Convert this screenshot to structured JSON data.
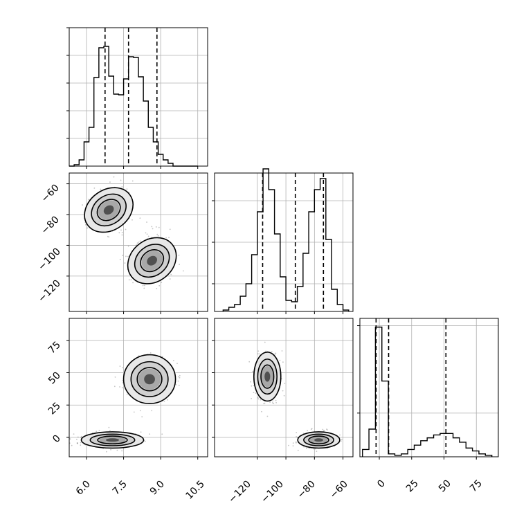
{
  "chart_data": [
    {
      "type": "histogram",
      "panel": "param-1 marginal",
      "bins": [
        5.3,
        5.5,
        5.7,
        5.9,
        6.1,
        6.3,
        6.5,
        6.7,
        6.9,
        7.1,
        7.3,
        7.5,
        7.7,
        7.9,
        8.1,
        8.3,
        8.5,
        8.7,
        8.9,
        9.1,
        9.3,
        9.5,
        9.7,
        9.9,
        10.1,
        10.3,
        10.5
      ],
      "counts": [
        0,
        2,
        9,
        35,
        56,
        128,
        171,
        173,
        130,
        104,
        103,
        126,
        158,
        157,
        129,
        94,
        56,
        35,
        17,
        9,
        4,
        0,
        0,
        0,
        0,
        0
      ],
      "quantile_lines": [
        6.75,
        7.7,
        8.85
      ],
      "xlim": [
        5.3,
        10.9
      ],
      "ylim": [
        0,
        200
      ],
      "grid": true
    },
    {
      "type": "histogram",
      "panel": "param-2 marginal",
      "bins": [
        -144,
        -140,
        -136,
        -132,
        -128,
        -124,
        -120,
        -116,
        -112,
        -108,
        -104,
        -100,
        -96,
        -92,
        -88,
        -84,
        -80,
        -76,
        -72,
        -68,
        -64,
        -60,
        -56
      ],
      "counts": [
        1,
        3,
        5,
        11,
        20,
        41,
        72,
        103,
        88,
        56,
        25,
        8,
        7,
        18,
        42,
        72,
        88,
        96,
        52,
        16,
        5,
        1
      ],
      "quantile_lines": [
        -116.3,
        -93.4,
        -73.7
      ],
      "xlim": [
        -150,
        -53
      ],
      "ylim": [
        0,
        100
      ],
      "grid": true
    },
    {
      "type": "histogram",
      "panel": "param-3 marginal",
      "bins": [
        -13,
        -8,
        -3,
        2,
        7,
        12,
        17,
        22,
        27,
        32,
        37,
        42,
        47,
        52,
        57,
        62,
        67,
        72,
        77,
        82,
        87
      ],
      "counts": [
        5,
        19,
        89,
        52,
        2,
        1,
        2,
        5,
        8,
        11,
        13,
        15,
        16,
        16,
        13,
        10,
        6,
        4,
        2,
        1
      ],
      "quantile_lines": [
        -2.5,
        7.2,
        51.5
      ],
      "xlim": [
        -15,
        92
      ],
      "ylim": [
        0,
        95
      ],
      "grid": true
    },
    {
      "type": "contour",
      "panel": "param-1 vs param-2",
      "x_ticks": [
        6.0,
        7.5,
        9.0,
        10.5
      ],
      "y_ticks": [
        -60,
        -80,
        -100,
        -120
      ],
      "xlim": [
        5.3,
        10.9
      ],
      "ylim": [
        -143,
        -53
      ],
      "modes": [
        {
          "cx": 6.9,
          "cy": -77,
          "rx": 1.0,
          "ry": 12.5,
          "angle": -35
        },
        {
          "cx": 8.65,
          "cy": -110,
          "rx": 1.0,
          "ry": 13,
          "angle": -38
        }
      ],
      "grid": true
    },
    {
      "type": "contour",
      "panel": "param-1 vs param-3",
      "x_ticks": [
        6.0,
        7.5,
        9.0,
        10.5
      ],
      "y_ticks": [
        75,
        50,
        25,
        0
      ],
      "xlim": [
        5.3,
        10.9
      ],
      "ylim": [
        -15,
        92
      ],
      "modes": [
        {
          "cx": 7.05,
          "cy": -2,
          "rx": 1.2,
          "ry": 6
        },
        {
          "cx": 8.55,
          "cy": 45,
          "rx": 1.0,
          "ry": 18
        }
      ],
      "grid": true
    },
    {
      "type": "contour",
      "panel": "param-2 vs param-3",
      "x_ticks": [
        -120,
        -100,
        -80,
        -60
      ],
      "y_ticks": [
        75,
        50,
        25,
        0
      ],
      "xlim": [
        -150,
        -53
      ],
      "ylim": [
        -15,
        92
      ],
      "modes": [
        {
          "cx": -113,
          "cy": 47,
          "rx": 9,
          "ry": 18
        },
        {
          "cx": -77,
          "cy": -2,
          "rx": 14,
          "ry": 6
        }
      ],
      "grid": true
    }
  ],
  "axis_labels": {
    "bottom_left": [
      "6.0",
      "7.5",
      "9.0",
      "10.5"
    ],
    "bottom_middle": [
      "−120",
      "−100",
      "−80",
      "−60"
    ],
    "bottom_right": [
      "0",
      "25",
      "50",
      "75"
    ],
    "left_middle": [
      "−60",
      "−80",
      "−100",
      "−120"
    ],
    "left_bottom": [
      "75",
      "50",
      "25",
      "0"
    ]
  }
}
